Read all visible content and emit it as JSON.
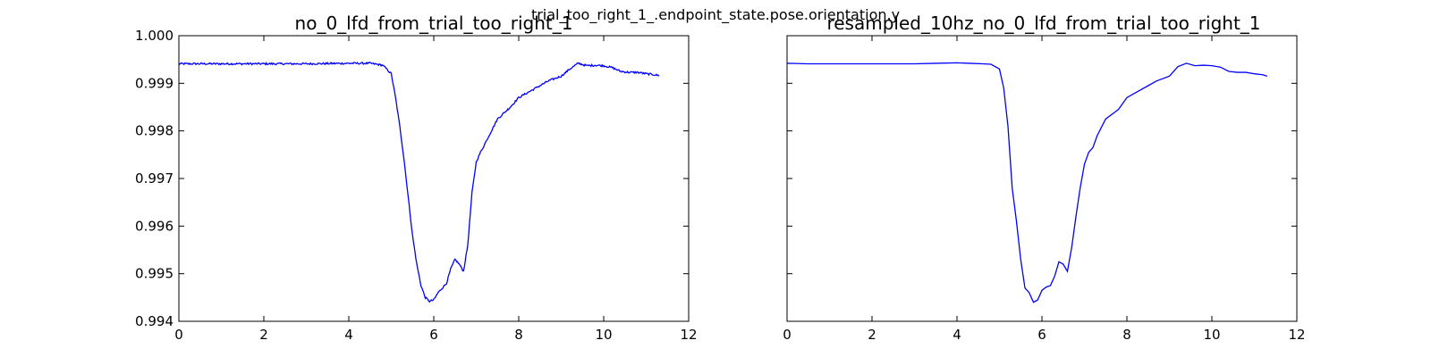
{
  "figure": {
    "suptitle": "trial_too_right_1_.endpoint_state.pose.orientation.y"
  },
  "chart_data": [
    {
      "type": "line",
      "title": "no_0_lfd_from_trial_too_right_1",
      "xlabel": "",
      "ylabel": "",
      "xlim": [
        0,
        12
      ],
      "ylim": [
        0.994,
        1.0
      ],
      "x_ticks": [
        "0",
        "2",
        "4",
        "6",
        "8",
        "10",
        "12"
      ],
      "y_ticks": [
        "0.994",
        "0.995",
        "0.996",
        "0.997",
        "0.998",
        "0.999",
        "1.000"
      ],
      "show_y_tick_labels": true,
      "grid": false,
      "series": [
        {
          "color": "#0000ff",
          "noisy": true,
          "x": [
            0,
            1,
            2,
            3,
            4,
            4.5,
            4.8,
            5.0,
            5.1,
            5.2,
            5.3,
            5.4,
            5.5,
            5.6,
            5.7,
            5.8,
            5.9,
            6.0,
            6.1,
            6.2,
            6.3,
            6.4,
            6.5,
            6.6,
            6.7,
            6.8,
            6.9,
            7.0,
            7.1,
            7.3,
            7.5,
            7.8,
            8.0,
            8.3,
            8.5,
            8.7,
            9.0,
            9.2,
            9.4,
            9.6,
            9.8,
            10.0,
            10.2,
            10.4,
            10.6,
            10.8,
            11.0,
            11.2,
            11.3
          ],
          "y": [
            0.99941,
            0.99941,
            0.99941,
            0.99941,
            0.99942,
            0.99942,
            0.99938,
            0.9992,
            0.9987,
            0.9981,
            0.9974,
            0.9966,
            0.9958,
            0.9952,
            0.99475,
            0.9945,
            0.99442,
            0.99445,
            0.9946,
            0.9947,
            0.9948,
            0.9951,
            0.9953,
            0.9952,
            0.99505,
            0.9956,
            0.9967,
            0.99735,
            0.99755,
            0.9979,
            0.99825,
            0.9985,
            0.9987,
            0.99885,
            0.99895,
            0.99905,
            0.99915,
            0.9993,
            0.99942,
            0.99937,
            0.99938,
            0.99937,
            0.99933,
            0.99925,
            0.99923,
            0.99923,
            0.9992,
            0.99918,
            0.99916
          ]
        }
      ]
    },
    {
      "type": "line",
      "title": "resampled_10hz_no_0_lfd_from_trial_too_right_1",
      "xlabel": "",
      "ylabel": "",
      "xlim": [
        0,
        12
      ],
      "ylim": [
        0.994,
        1.0
      ],
      "x_ticks": [
        "0",
        "2",
        "4",
        "6",
        "8",
        "10",
        "12"
      ],
      "y_ticks": [],
      "show_y_tick_labels": false,
      "grid": false,
      "series": [
        {
          "color": "#0000ff",
          "noisy": false,
          "x": [
            0,
            0.5,
            1,
            1.5,
            2,
            2.5,
            3,
            3.5,
            4,
            4.3,
            4.6,
            4.8,
            5.0,
            5.1,
            5.2,
            5.3,
            5.4,
            5.5,
            5.6,
            5.7,
            5.8,
            5.9,
            6.0,
            6.1,
            6.2,
            6.3,
            6.4,
            6.5,
            6.6,
            6.7,
            6.8,
            6.9,
            7.0,
            7.1,
            7.2,
            7.3,
            7.5,
            7.8,
            8.0,
            8.3,
            8.5,
            8.7,
            9.0,
            9.2,
            9.4,
            9.6,
            9.8,
            10.0,
            10.2,
            10.4,
            10.6,
            10.8,
            11.0,
            11.2,
            11.3
          ],
          "y": [
            0.99942,
            0.99941,
            0.99941,
            0.99941,
            0.99941,
            0.99941,
            0.99941,
            0.99942,
            0.99943,
            0.99942,
            0.99941,
            0.9994,
            0.9993,
            0.9989,
            0.9981,
            0.9968,
            0.9961,
            0.9953,
            0.9947,
            0.9946,
            0.9944,
            0.99445,
            0.99465,
            0.99472,
            0.99475,
            0.99495,
            0.99525,
            0.9952,
            0.99505,
            0.99555,
            0.9962,
            0.9968,
            0.9973,
            0.99755,
            0.99765,
            0.9979,
            0.99825,
            0.99845,
            0.9987,
            0.99885,
            0.99895,
            0.99905,
            0.99915,
            0.99935,
            0.99942,
            0.99937,
            0.99938,
            0.99937,
            0.99934,
            0.99925,
            0.99923,
            0.99923,
            0.9992,
            0.99918,
            0.99915
          ]
        }
      ]
    }
  ]
}
